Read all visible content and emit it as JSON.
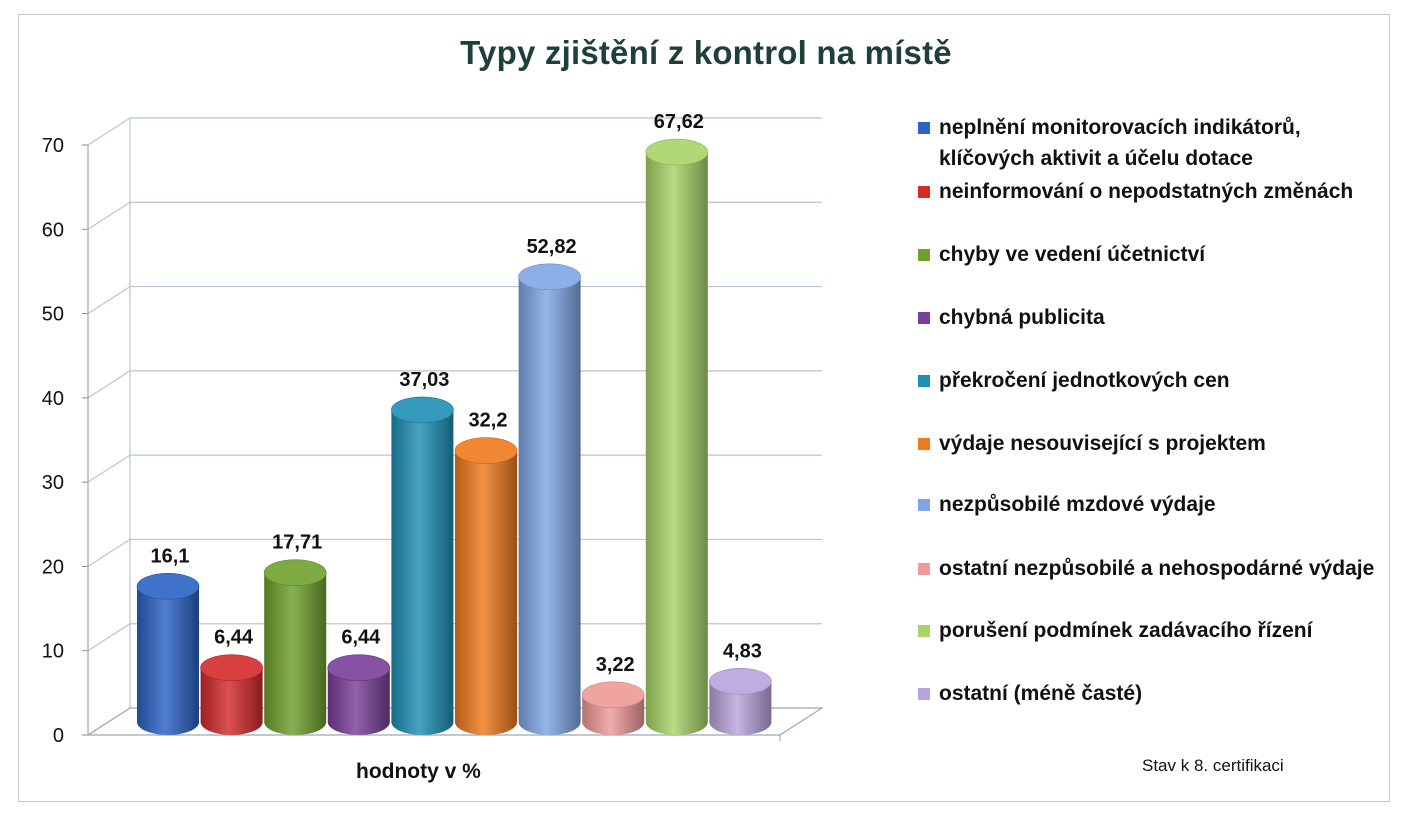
{
  "chart_data": {
    "type": "bar",
    "title": "Typy zjištění z kontrol na místě",
    "xlabel": "hodnoty v  %",
    "ylabel": "",
    "ylim": [
      0,
      70
    ],
    "yticks": [
      0,
      10,
      20,
      30,
      40,
      50,
      60,
      70
    ],
    "grid": true,
    "legend_position": "right",
    "style": "3d-cylinder",
    "series": [
      {
        "name": "neplnění monitorovacích indikátorů, klíčových aktivit a účelu dotace",
        "value": 16.1,
        "label": "16,1",
        "color": "#2a62c4"
      },
      {
        "name": "neinformování o nepodstatných změnách",
        "value": 6.44,
        "label": "6,44",
        "color": "#d42a2a"
      },
      {
        "name": "chyby ve vedení účetnictví",
        "value": 17.71,
        "label": "17,71",
        "color": "#6ea12c"
      },
      {
        "name": "chybná publicita",
        "value": 6.44,
        "label": "6,44",
        "color": "#7a3f9a"
      },
      {
        "name": "překročení jednotkových cen",
        "value": 37.03,
        "label": "37,03",
        "color": "#1f8fb4"
      },
      {
        "name": "výdaje nesouvisející s projektem",
        "value": 32.2,
        "label": "32,2",
        "color": "#f07a1c"
      },
      {
        "name": "nezpůsobilé mzdové výdaje",
        "value": 52.82,
        "label": "52,82",
        "color": "#7fa6e4"
      },
      {
        "name": "ostatní nezpůsobilé a nehospodárné výdaje",
        "value": 3.22,
        "label": "3,22",
        "color": "#ee9a98"
      },
      {
        "name": "porušení podmínek zadávacího řízení",
        "value": 67.62,
        "label": "67,62",
        "color": "#a8d468"
      },
      {
        "name": "ostatní (méně časté)",
        "value": 4.83,
        "label": "4,83",
        "color": "#b9a3dc"
      }
    ]
  },
  "note": "Stav k 8. certifikaci"
}
